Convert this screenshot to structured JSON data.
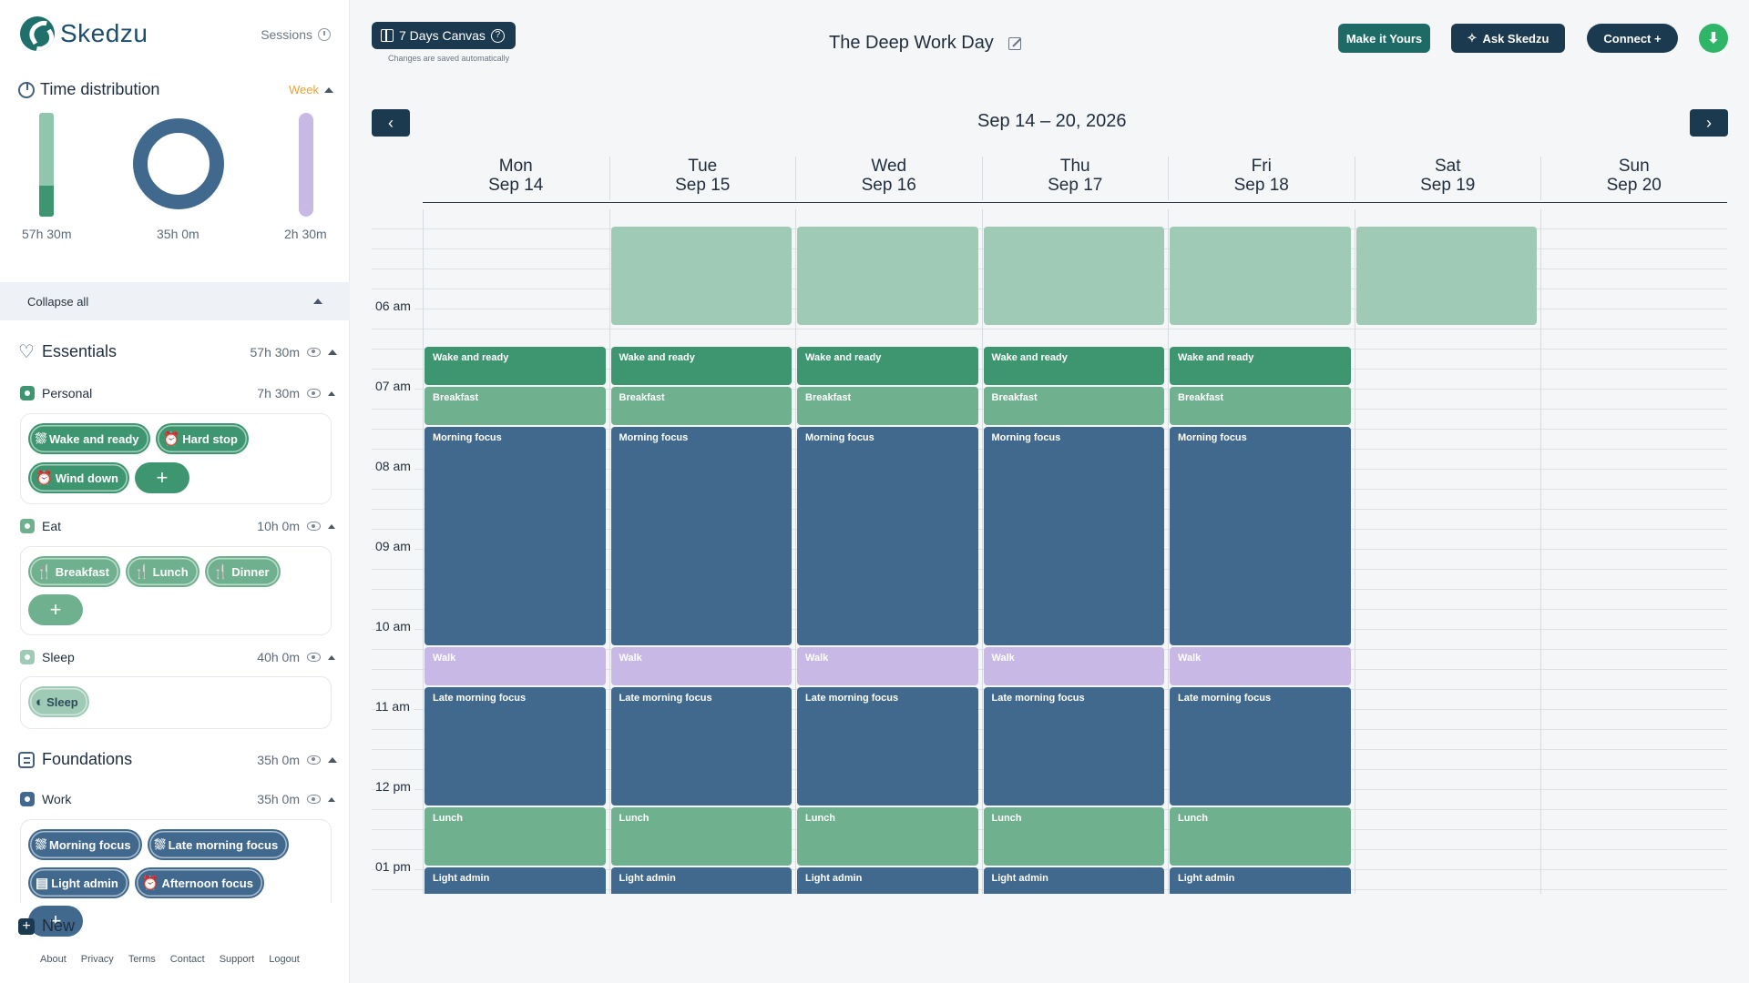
{
  "app": {
    "brand": "Skedzu",
    "sessions_label": "Sessions"
  },
  "sidebar": {
    "time_distribution": {
      "title": "Time distribution",
      "range": "Week",
      "stats": [
        "57h 30m",
        "35h 0m",
        "2h 30m"
      ],
      "colors": {
        "essentials": "#3e9670",
        "foundations": "#41698e",
        "other": "#c7b8e6"
      }
    },
    "collapse_all": "Collapse all",
    "essentials": {
      "title": "Essentials",
      "total": "57h 30m",
      "groups": [
        {
          "name": "Personal",
          "total": "7h 30m",
          "color": "#3e9670",
          "chips": [
            {
              "label": "Wake and ready",
              "icon": "shower-icon"
            },
            {
              "label": "Hard stop",
              "icon": "alarm-icon"
            },
            {
              "label": "Wind down",
              "icon": "alarm-icon"
            }
          ]
        },
        {
          "name": "Eat",
          "total": "10h 0m",
          "color": "#6fb08f",
          "chips": [
            {
              "label": "Breakfast",
              "icon": "cutlery-icon"
            },
            {
              "label": "Lunch",
              "icon": "cutlery-icon"
            },
            {
              "label": "Dinner",
              "icon": "cutlery-icon"
            }
          ]
        },
        {
          "name": "Sleep",
          "total": "40h 0m",
          "color": "#9fcab5",
          "chips": [
            {
              "label": "Sleep",
              "icon": "moon-clock-icon"
            }
          ]
        }
      ]
    },
    "foundations": {
      "title": "Foundations",
      "total": "35h 0m",
      "groups": [
        {
          "name": "Work",
          "total": "35h 0m",
          "color": "#41698e",
          "chips": [
            {
              "label": "Morning focus",
              "icon": "shower-icon"
            },
            {
              "label": "Late morning focus",
              "icon": "shower-icon"
            },
            {
              "label": "Light admin",
              "icon": "document-icon"
            },
            {
              "label": "Afternoon focus",
              "icon": "alarm-icon"
            }
          ]
        }
      ]
    },
    "add_label": "+",
    "new_label": "New",
    "footer_links": [
      "About",
      "Privacy",
      "Terms",
      "Contact",
      "Support",
      "Logout"
    ]
  },
  "topbar": {
    "canvas_label": "7 Days Canvas",
    "saved_note": "Changes are saved automatically",
    "page_title": "The Deep Work Day",
    "make_it_yours": "Make it Yours",
    "ask": "Ask Skedzu",
    "connect": "Connect +"
  },
  "calendar": {
    "week_range": "Sep 14 – 20, 2026",
    "days": [
      {
        "dow": "Mon",
        "date": "Sep 14"
      },
      {
        "dow": "Tue",
        "date": "Sep 15"
      },
      {
        "dow": "Wed",
        "date": "Sep 16"
      },
      {
        "dow": "Thu",
        "date": "Sep 17"
      },
      {
        "dow": "Fri",
        "date": "Sep 18"
      },
      {
        "dow": "Sat",
        "date": "Sep 19"
      },
      {
        "dow": "Sun",
        "date": "Sep 20"
      }
    ],
    "hours": [
      "06 am",
      "07 am",
      "08 am",
      "09 am",
      "10 am",
      "11 am",
      "12 pm",
      "01 pm"
    ],
    "events": [
      {
        "title": "",
        "kind": "sleep",
        "days": [
          1,
          2,
          3,
          4,
          5
        ],
        "start": "05:00",
        "end": "06:15"
      },
      {
        "title": "Wake and ready",
        "kind": "wake",
        "days": [
          0,
          1,
          2,
          3,
          4
        ],
        "start": "06:30",
        "end": "07:00"
      },
      {
        "title": "Breakfast",
        "kind": "eat",
        "days": [
          0,
          1,
          2,
          3,
          4
        ],
        "start": "07:00",
        "end": "07:30"
      },
      {
        "title": "Morning focus",
        "kind": "work",
        "days": [
          0,
          1,
          2,
          3,
          4
        ],
        "start": "07:30",
        "end": "10:15"
      },
      {
        "title": "Walk",
        "kind": "walk",
        "days": [
          0,
          1,
          2,
          3,
          4
        ],
        "start": "10:15",
        "end": "10:45"
      },
      {
        "title": "Late morning focus",
        "kind": "work",
        "days": [
          0,
          1,
          2,
          3,
          4
        ],
        "start": "10:45",
        "end": "12:15"
      },
      {
        "title": "Lunch",
        "kind": "eat",
        "days": [
          0,
          1,
          2,
          3,
          4
        ],
        "start": "12:15",
        "end": "13:00"
      },
      {
        "title": "Light admin",
        "kind": "work",
        "days": [
          0,
          1,
          2,
          3,
          4
        ],
        "start": "13:00",
        "end": "13:30"
      }
    ]
  }
}
